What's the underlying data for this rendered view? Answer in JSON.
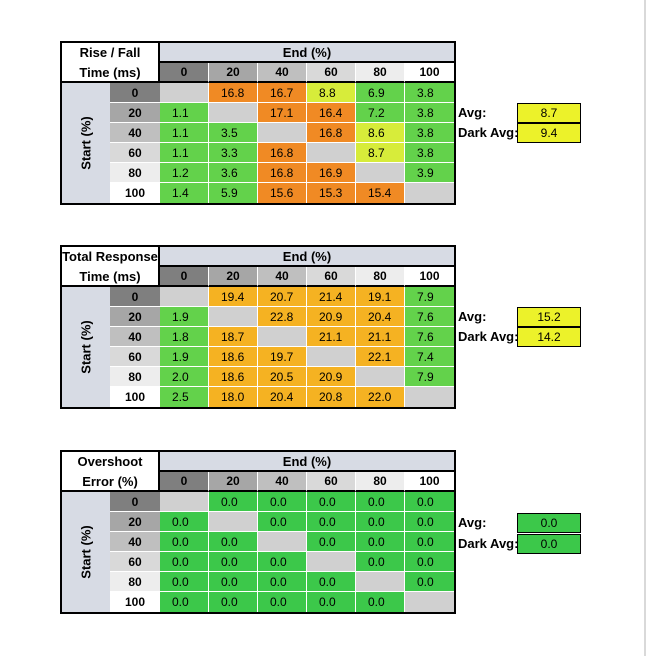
{
  "colors": {
    "grey": "#d0d0d0",
    "green": "#63d24b",
    "lime": "#d7ec3a",
    "orange": "#f08a24",
    "amber": "#f5b222",
    "deepgreen": "#3cc84a",
    "yellow": "#ecf22a",
    "header_band": "#d7dbe4"
  },
  "header_shades": [
    "#7f7f7f",
    "#a6a6a6",
    "#bfbfbf",
    "#d9d9d9",
    "#ededed",
    "#ffffff"
  ],
  "tables": [
    {
      "title_lines": [
        "Rise / Fall",
        "Time (ms)"
      ],
      "end_label": "End (%)",
      "start_label": "Start (%)",
      "columns": [
        "0",
        "20",
        "40",
        "60",
        "80",
        "100"
      ],
      "rows": [
        "0",
        "20",
        "40",
        "60",
        "80",
        "100"
      ],
      "values": [
        [
          "",
          "16.8",
          "16.7",
          "8.8",
          "6.9",
          "3.8"
        ],
        [
          "1.1",
          "",
          "17.1",
          "16.4",
          "7.2",
          "3.8"
        ],
        [
          "1.1",
          "3.5",
          "",
          "16.8",
          "8.6",
          "3.8"
        ],
        [
          "1.1",
          "3.3",
          "16.8",
          "",
          "8.7",
          "3.8"
        ],
        [
          "1.2",
          "3.6",
          "16.8",
          "16.9",
          "",
          "3.9"
        ],
        [
          "1.4",
          "5.9",
          "15.6",
          "15.3",
          "15.4",
          ""
        ]
      ],
      "cell_colors": [
        [
          "grey",
          "orange",
          "orange",
          "lime",
          "green",
          "green"
        ],
        [
          "green",
          "grey",
          "orange",
          "orange",
          "green",
          "green"
        ],
        [
          "green",
          "green",
          "grey",
          "orange",
          "lime",
          "green"
        ],
        [
          "green",
          "green",
          "orange",
          "grey",
          "lime",
          "green"
        ],
        [
          "green",
          "green",
          "orange",
          "orange",
          "grey",
          "green"
        ],
        [
          "green",
          "green",
          "orange",
          "orange",
          "orange",
          "grey"
        ]
      ],
      "avg_label": "Avg:",
      "avg_value": "8.7",
      "dark_avg_label": "Dark Avg:",
      "dark_avg_value": "9.4",
      "avg_color": "yellow"
    },
    {
      "title_lines": [
        "Total Response",
        "Time (ms)"
      ],
      "end_label": "End (%)",
      "start_label": "Start (%)",
      "columns": [
        "0",
        "20",
        "40",
        "60",
        "80",
        "100"
      ],
      "rows": [
        "0",
        "20",
        "40",
        "60",
        "80",
        "100"
      ],
      "values": [
        [
          "",
          "19.4",
          "20.7",
          "21.4",
          "19.1",
          "7.9"
        ],
        [
          "1.9",
          "",
          "22.8",
          "20.9",
          "20.4",
          "7.6"
        ],
        [
          "1.8",
          "18.7",
          "",
          "21.1",
          "21.1",
          "7.6"
        ],
        [
          "1.9",
          "18.6",
          "19.7",
          "",
          "22.1",
          "7.4"
        ],
        [
          "2.0",
          "18.6",
          "20.5",
          "20.9",
          "",
          "7.9"
        ],
        [
          "2.5",
          "18.0",
          "20.4",
          "20.8",
          "22.0",
          ""
        ]
      ],
      "cell_colors": [
        [
          "grey",
          "amber",
          "amber",
          "amber",
          "amber",
          "green"
        ],
        [
          "green",
          "grey",
          "amber",
          "amber",
          "amber",
          "green"
        ],
        [
          "green",
          "amber",
          "grey",
          "amber",
          "amber",
          "green"
        ],
        [
          "green",
          "amber",
          "amber",
          "grey",
          "amber",
          "green"
        ],
        [
          "green",
          "amber",
          "amber",
          "amber",
          "grey",
          "green"
        ],
        [
          "green",
          "amber",
          "amber",
          "amber",
          "amber",
          "grey"
        ]
      ],
      "avg_label": "Avg:",
      "avg_value": "15.2",
      "dark_avg_label": "Dark Avg:",
      "dark_avg_value": "14.2",
      "avg_color": "yellow"
    },
    {
      "title_lines": [
        "Overshoot",
        "Error (%)"
      ],
      "end_label": "End (%)",
      "start_label": "Start (%)",
      "columns": [
        "0",
        "20",
        "40",
        "60",
        "80",
        "100"
      ],
      "rows": [
        "0",
        "20",
        "40",
        "60",
        "80",
        "100"
      ],
      "values": [
        [
          "",
          "0.0",
          "0.0",
          "0.0",
          "0.0",
          "0.0"
        ],
        [
          "0.0",
          "",
          "0.0",
          "0.0",
          "0.0",
          "0.0"
        ],
        [
          "0.0",
          "0.0",
          "",
          "0.0",
          "0.0",
          "0.0"
        ],
        [
          "0.0",
          "0.0",
          "0.0",
          "",
          "0.0",
          "0.0"
        ],
        [
          "0.0",
          "0.0",
          "0.0",
          "0.0",
          "",
          "0.0"
        ],
        [
          "0.0",
          "0.0",
          "0.0",
          "0.0",
          "0.0",
          ""
        ]
      ],
      "cell_colors": [
        [
          "grey",
          "deepgreen",
          "deepgreen",
          "deepgreen",
          "deepgreen",
          "deepgreen"
        ],
        [
          "deepgreen",
          "grey",
          "deepgreen",
          "deepgreen",
          "deepgreen",
          "deepgreen"
        ],
        [
          "deepgreen",
          "deepgreen",
          "grey",
          "deepgreen",
          "deepgreen",
          "deepgreen"
        ],
        [
          "deepgreen",
          "deepgreen",
          "deepgreen",
          "grey",
          "deepgreen",
          "deepgreen"
        ],
        [
          "deepgreen",
          "deepgreen",
          "deepgreen",
          "deepgreen",
          "grey",
          "deepgreen"
        ],
        [
          "deepgreen",
          "deepgreen",
          "deepgreen",
          "deepgreen",
          "deepgreen",
          "grey"
        ]
      ],
      "avg_label": "Avg:",
      "avg_value": "0.0",
      "dark_avg_label": "Dark Avg:",
      "dark_avg_value": "0.0",
      "avg_color": "deepgreen"
    }
  ]
}
